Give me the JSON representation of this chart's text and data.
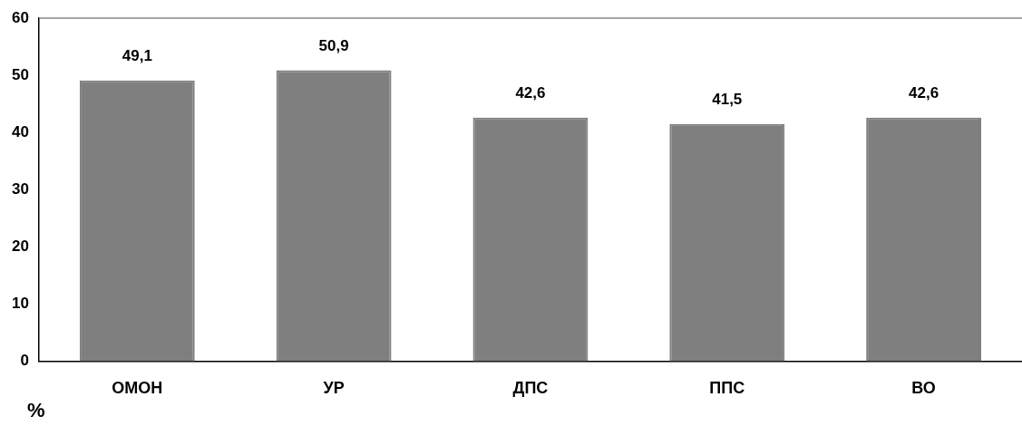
{
  "chart_data": {
    "type": "bar",
    "ylabel": "%",
    "categories": [
      "ОМОН",
      "УР",
      "ДПС",
      "ППС",
      "ВО"
    ],
    "values": [
      49.1,
      50.9,
      42.6,
      41.5,
      42.6
    ],
    "value_labels": [
      "49,1",
      "50,9",
      "42,6",
      "41,5",
      "42,6"
    ],
    "color": "#7f7f7f",
    "ylim": [
      0,
      60
    ],
    "yticks": [
      0,
      10,
      20,
      30,
      40,
      50,
      60
    ],
    "grid": false,
    "legend": false
  }
}
